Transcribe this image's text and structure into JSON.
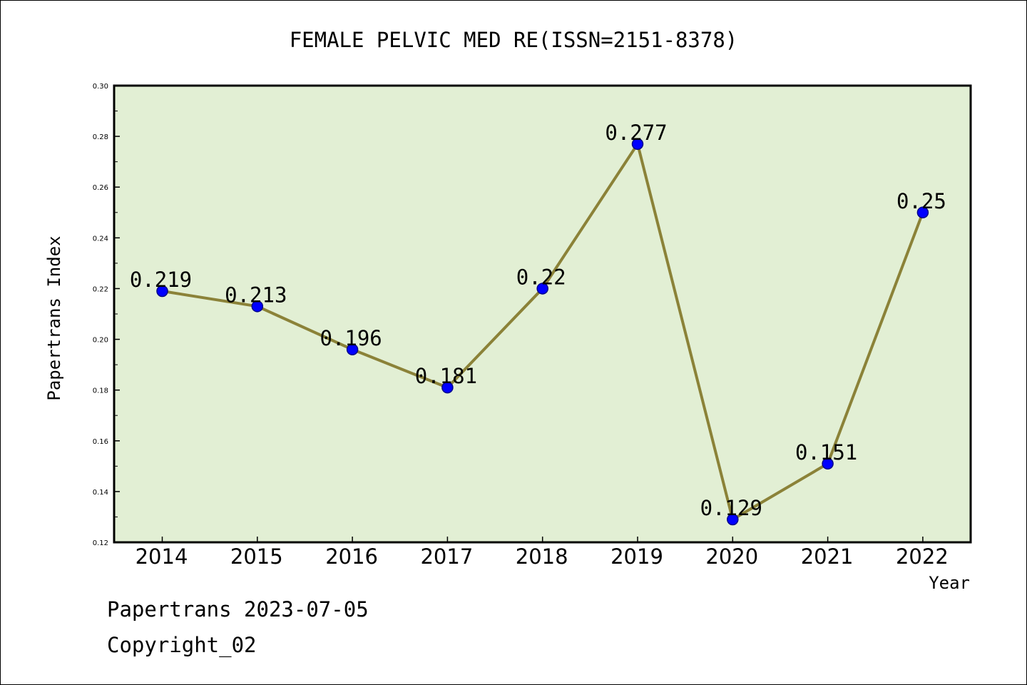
{
  "footer": {
    "line1": "Papertrans 2023-07-05",
    "line2": "Copyright_02"
  },
  "colors": {
    "plot_background": "#e2efd4",
    "line": "#8b8238",
    "marker": "#0000ff",
    "marker_edge": "#00008b",
    "axes": "#000000"
  },
  "chart_data": {
    "type": "line",
    "title": "FEMALE PELVIC MED RE(ISSN=2151-8378)",
    "xlabel": "Year",
    "ylabel": "Papertrans Index",
    "categories": [
      "2014",
      "2015",
      "2016",
      "2017",
      "2018",
      "2019",
      "2020",
      "2021",
      "2022"
    ],
    "values": [
      0.219,
      0.213,
      0.196,
      0.181,
      0.22,
      0.277,
      0.129,
      0.151,
      0.25
    ],
    "data_labels": [
      "0.219",
      "0.213",
      "0.196",
      "0.181",
      "0.22",
      "0.277",
      "0.129",
      "0.151",
      "0.25"
    ],
    "ylim": [
      0.12,
      0.3
    ],
    "yticks": [
      "0.12",
      "0.14",
      "0.16",
      "0.18",
      "0.20",
      "0.22",
      "0.24",
      "0.26",
      "0.28",
      "0.30"
    ],
    "grid": false,
    "legend": "none"
  }
}
